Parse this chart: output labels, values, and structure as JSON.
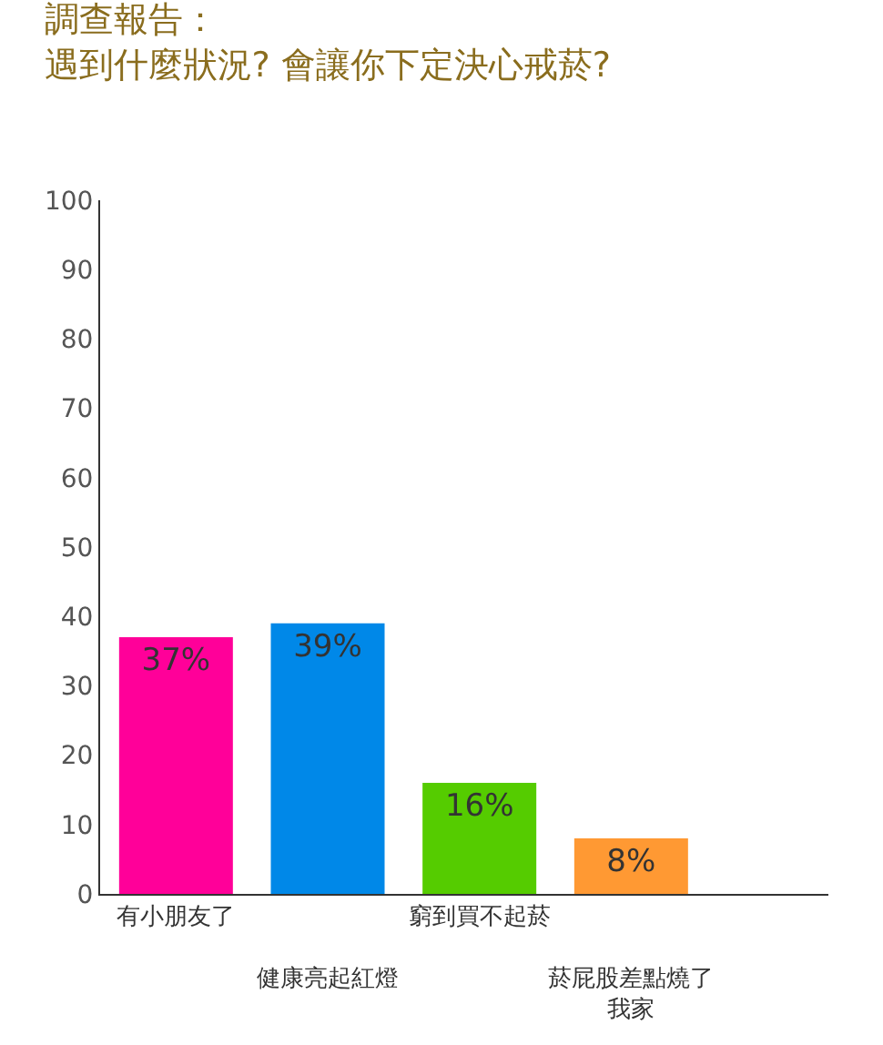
{
  "chart_data": {
    "type": "bar",
    "title": "調查報告：",
    "subtitle": "遇到什麼狀況? 會讓你下定決心戒菸?",
    "categories": [
      "有小朋友了",
      "健康亮起紅燈",
      "窮到買不起菸",
      "菸屁股差點燒了我家"
    ],
    "values": [
      37,
      39,
      16,
      8
    ],
    "colors": [
      "#ff0099",
      "#0088e8",
      "#55cc00",
      "#ff9933"
    ],
    "value_labels": [
      "37%",
      "39%",
      "16%",
      "8%"
    ],
    "ylim": [
      0,
      100
    ],
    "yticks": [
      0,
      10,
      20,
      30,
      40,
      50,
      60,
      70,
      80,
      90,
      100
    ],
    "legend": false
  }
}
